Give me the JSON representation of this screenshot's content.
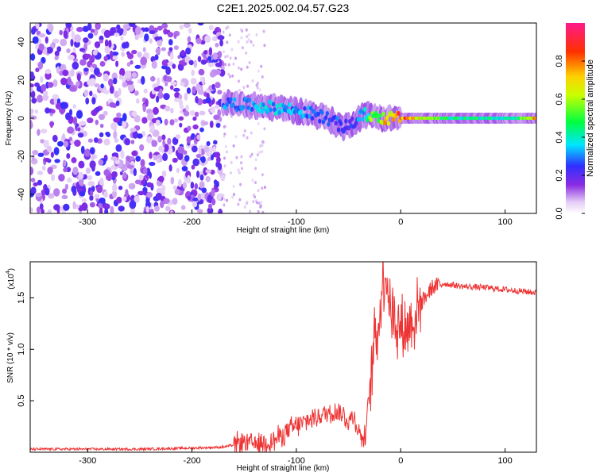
{
  "chart_data": [
    {
      "type": "heatmap",
      "title": "C2E1.2025.002.04.57.G23",
      "xlabel": "Height of straight line (km)",
      "ylabel": "Frequency (Hz)",
      "xlim": [
        -355,
        130
      ],
      "ylim": [
        -50,
        50
      ],
      "x_ticks": [
        -300,
        -200,
        -100,
        0,
        100
      ],
      "y_ticks": [
        -40,
        -20,
        0,
        20,
        40
      ],
      "colorbar": {
        "label": "Normalized spectral amplitude",
        "range": [
          0,
          1
        ],
        "ticks": [
          "0.0",
          "0.2",
          "0.4",
          "0.6",
          "0.8"
        ],
        "colormap": "rainbow (white-violet-blue-cyan-green-yellow-red-magenta)"
      },
      "ridge": {
        "description": "main frequency ridge of the signal",
        "x": [
          -170,
          -150,
          -130,
          -110,
          -90,
          -70,
          -55,
          -45,
          -35,
          -25,
          -15,
          0,
          20,
          50,
          80,
          110,
          130
        ],
        "freq": [
          8,
          7,
          6,
          5,
          3,
          0,
          -5,
          -2,
          2,
          1,
          0,
          0,
          0,
          0,
          0,
          0,
          0
        ],
        "amplitude": [
          0.3,
          0.3,
          0.35,
          0.35,
          0.3,
          0.3,
          0.25,
          0.25,
          0.4,
          0.6,
          0.7,
          0.85,
          0.65,
          0.45,
          0.45,
          0.45,
          0.75
        ]
      },
      "noise_region": {
        "x_range": [
          -355,
          -170
        ],
        "freq_range": [
          -50,
          50
        ],
        "amplitude": [
          0.05,
          0.25
        ]
      }
    },
    {
      "type": "line",
      "xlabel": "Height of straight line (km)",
      "ylabel": "SNR (10 * v/v)",
      "y_multiplier": "(x10",
      "y_multiplier_exp": "4",
      "xlim": [
        -355,
        130
      ],
      "ylim": [
        0,
        1.85
      ],
      "x_ticks": [
        -300,
        -200,
        -100,
        0,
        100
      ],
      "y_ticks": [
        "0.5",
        "1.0",
        "1.5"
      ],
      "series": [
        {
          "color": "#ee3333",
          "x": [
            -355,
            -300,
            -250,
            -200,
            -170,
            -160,
            -150,
            -140,
            -120,
            -110,
            -100,
            -90,
            -80,
            -70,
            -60,
            -50,
            -45,
            -40,
            -35,
            -30,
            -28,
            -25,
            -20,
            -18,
            -15,
            -10,
            0,
            10,
            20,
            30,
            40,
            60,
            80,
            100,
            130
          ],
          "y": [
            0.03,
            0.03,
            0.03,
            0.04,
            0.05,
            0.07,
            0.1,
            0.08,
            0.12,
            0.2,
            0.25,
            0.3,
            0.35,
            0.38,
            0.4,
            0.3,
            0.35,
            0.2,
            0.1,
            0.55,
            0.8,
            1.1,
            1.3,
            1.6,
            1.8,
            1.4,
            1.2,
            1.25,
            1.45,
            1.6,
            1.64,
            1.61,
            1.6,
            1.58,
            1.55
          ]
        }
      ]
    }
  ]
}
